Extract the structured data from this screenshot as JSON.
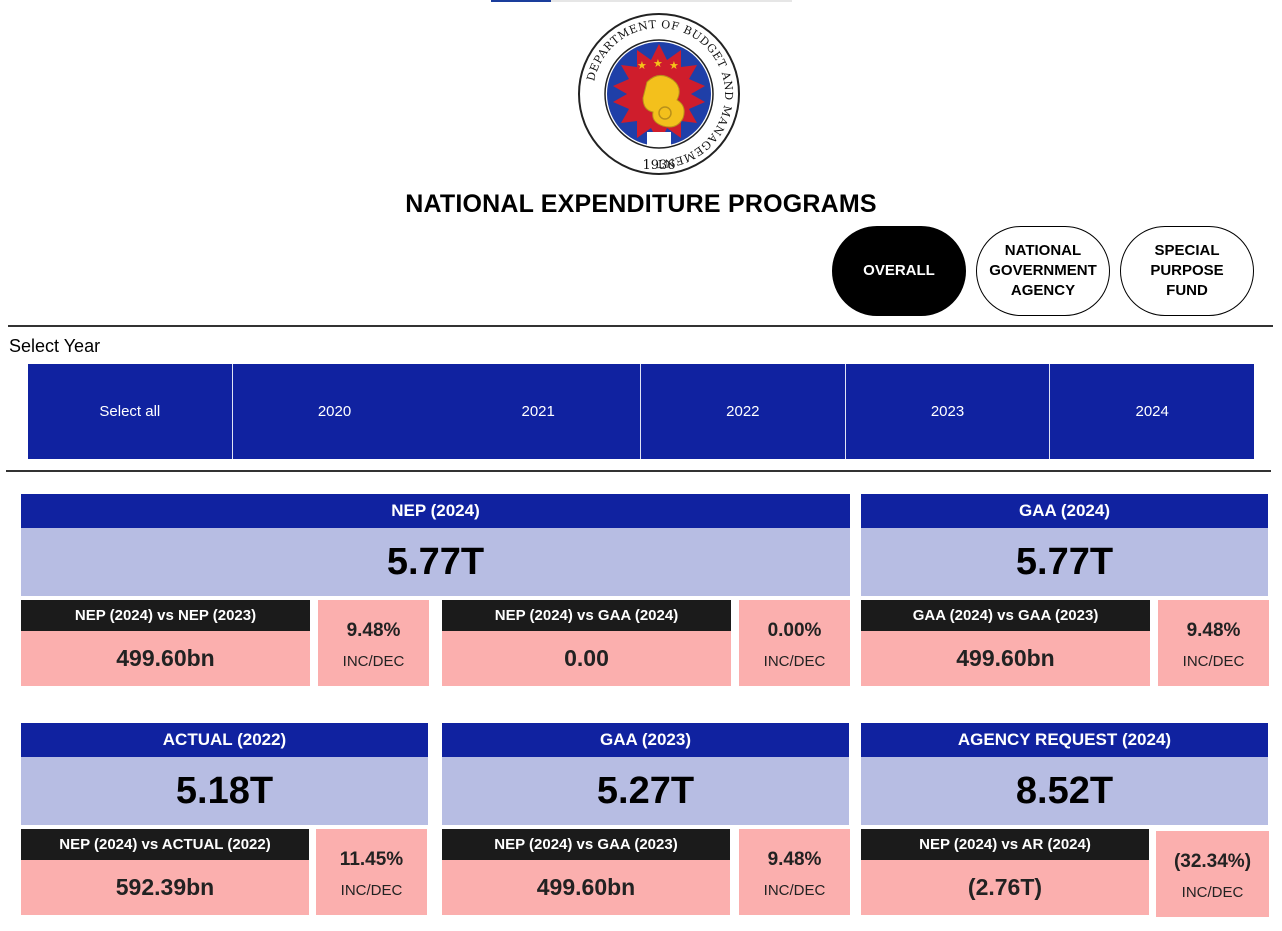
{
  "header": {
    "title": "NATIONAL EXPENDITURE PROGRAMS",
    "logo": {
      "ring_text": "DEPARTMENT OF BUDGET AND MANAGEMENT",
      "year": "1936",
      "icon": "dbm-seal-icon"
    }
  },
  "view_tabs": [
    {
      "label": "OVERALL",
      "active": true
    },
    {
      "label": "NATIONAL GOVERNMENT AGENCY",
      "active": false
    },
    {
      "label": "SPECIAL PURPOSE FUND",
      "active": false
    }
  ],
  "year_filter": {
    "label": "Select Year",
    "options": [
      "Select all",
      "2020",
      "2021",
      "2022",
      "2023",
      "2024"
    ]
  },
  "colors": {
    "header_blue": "#1022a0",
    "value_lavender": "#b7bde3",
    "compare_pink": "#fbafae",
    "compare_header": "#1b1b1b"
  },
  "cards": {
    "nep": {
      "title": "NEP (2024)",
      "value": "5.77T"
    },
    "gaa": {
      "title": "GAA (2024)",
      "value": "5.77T"
    },
    "actual": {
      "title": "ACTUAL (2022)",
      "value": "5.18T"
    },
    "gaa_prev": {
      "title": "GAA (2023)",
      "value": "5.27T"
    },
    "agency_request": {
      "title": "AGENCY REQUEST (2024)",
      "value": "8.52T"
    }
  },
  "comparisons": {
    "nep_vs_nep_prev": {
      "label": "NEP (2024) vs NEP (2023)",
      "value": "499.60bn",
      "pct": "9.48%",
      "pct_label": "INC/DEC"
    },
    "nep_vs_gaa": {
      "label": "NEP (2024) vs GAA (2024)",
      "value": "0.00",
      "pct": "0.00%",
      "pct_label": "INC/DEC"
    },
    "gaa_vs_gaa_prev": {
      "label": "GAA (2024) vs GAA (2023)",
      "value": "499.60bn",
      "pct": "9.48%",
      "pct_label": "INC/DEC"
    },
    "nep_vs_actual": {
      "label": "NEP (2024) vs ACTUAL (2022)",
      "value": "592.39bn",
      "pct": "11.45%",
      "pct_label": "INC/DEC"
    },
    "nep_vs_gaa_prev": {
      "label": "NEP (2024) vs GAA (2023)",
      "value": "499.60bn",
      "pct": "9.48%",
      "pct_label": "INC/DEC"
    },
    "nep_vs_ar": {
      "label": "NEP (2024) vs AR (2024)",
      "value": "(2.76T)",
      "pct": "(32.34%)",
      "pct_label": "INC/DEC"
    }
  }
}
